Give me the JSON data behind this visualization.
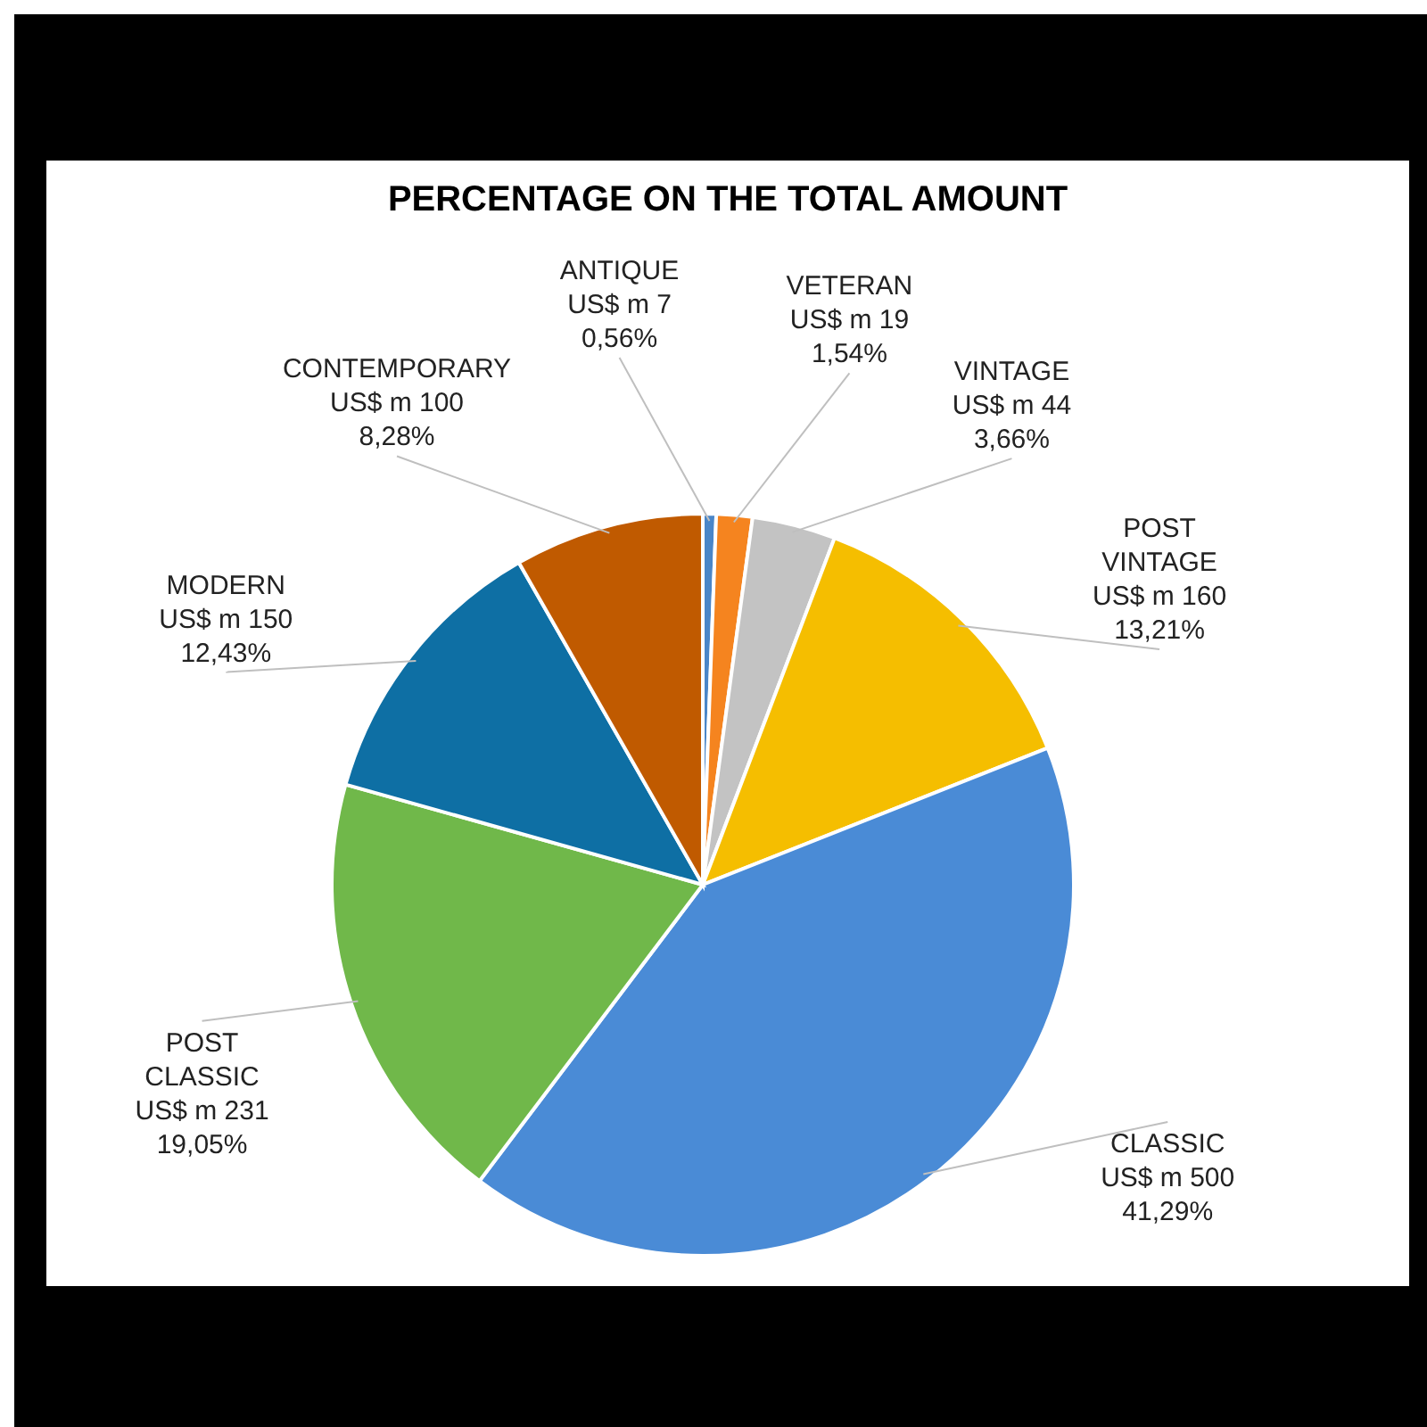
{
  "chart_data": {
    "type": "pie",
    "title": "PERCENTAGE ON THE TOTAL AMOUNT",
    "categories": [
      "ANTIQUE",
      "VETERAN",
      "VINTAGE",
      "POST VINTAGE",
      "CLASSIC",
      "POST CLASSIC",
      "MODERN",
      "CONTEMPORARY"
    ],
    "values": [
      7,
      19,
      44,
      160,
      500,
      231,
      150,
      100
    ],
    "colors": [
      "#4a86c8",
      "#f5841f",
      "#c3c3c3",
      "#f5be00",
      "#4a8bd6",
      "#70b84a",
      "#0e6fa4",
      "#c05a00"
    ],
    "value_labels": [
      "US$ m 7\n0,56%",
      "US$ m 19\n1,54%",
      "US$ m 44\n3,66%",
      "US$ m 160\n13,21%",
      "US$ m 500\n41,29%",
      "US$ m 231\n19,05%",
      "US$ m 150\n12,43%",
      "US$ m 100\n8,28%"
    ],
    "data_labels": true
  }
}
